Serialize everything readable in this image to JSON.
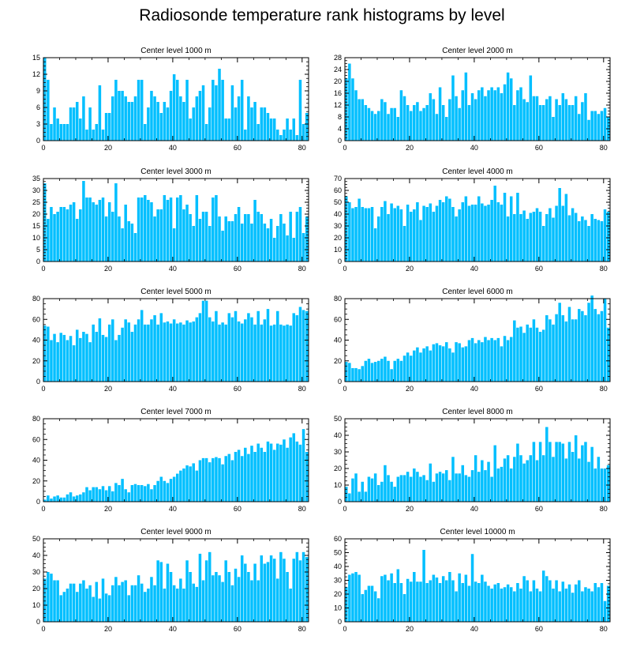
{
  "title": "Radiosonde temperature rank histograms by level",
  "colors": {
    "bar": "#00BFFF",
    "bar_edge": "#ffffff",
    "axis": "#000000"
  },
  "chart_data": [
    {
      "type": "bar",
      "title": "Center level 1000 m",
      "xlim": [
        0,
        82
      ],
      "ylim": [
        0,
        15
      ],
      "xticks": [
        0,
        20,
        40,
        60,
        80
      ],
      "yticks": [
        0,
        3,
        6,
        9,
        12,
        15
      ],
      "values": [
        15,
        11,
        3,
        6,
        4,
        3,
        3,
        3,
        6,
        6,
        7,
        4,
        8,
        2,
        6,
        2,
        3,
        10,
        2,
        5,
        5,
        8,
        11,
        9,
        9,
        8,
        7,
        7,
        8,
        11,
        11,
        3,
        6,
        9,
        8,
        7,
        5,
        7,
        6,
        9,
        12,
        11,
        8,
        7,
        11,
        4,
        6,
        8,
        9,
        10,
        3,
        6,
        11,
        10,
        13,
        11,
        4,
        4,
        10,
        6,
        8,
        11,
        2,
        8,
        6,
        7,
        3,
        6,
        6,
        5,
        4,
        4,
        2,
        1,
        2,
        4,
        2,
        4,
        1,
        11,
        3,
        5
      ]
    },
    {
      "type": "bar",
      "title": "Center level 2000 m",
      "xlim": [
        0,
        82
      ],
      "ylim": [
        0,
        28
      ],
      "xticks": [
        0,
        20,
        40,
        60,
        80
      ],
      "yticks": [
        0,
        4,
        8,
        12,
        16,
        20,
        24,
        28
      ],
      "values": [
        21,
        26,
        21,
        17,
        14,
        14,
        12,
        11,
        10,
        9,
        10,
        14,
        13,
        9,
        11,
        11,
        8,
        17,
        15,
        12,
        10,
        12,
        13,
        10,
        11,
        12,
        16,
        14,
        9,
        18,
        12,
        8,
        14,
        22,
        15,
        11,
        17,
        23,
        12,
        16,
        14,
        17,
        18,
        15,
        17,
        18,
        17,
        18,
        16,
        19,
        23,
        21,
        12,
        17,
        18,
        14,
        13,
        22,
        15,
        15,
        12,
        12,
        14,
        15,
        8,
        14,
        12,
        16,
        14,
        12,
        12,
        15,
        9,
        13,
        16,
        7,
        10,
        10,
        9,
        10,
        11,
        8
      ]
    },
    {
      "type": "bar",
      "title": "Center level 3000 m",
      "xlim": [
        0,
        82
      ],
      "ylim": [
        0,
        35
      ],
      "xticks": [
        0,
        20,
        40,
        60,
        80
      ],
      "yticks": [
        0,
        5,
        10,
        15,
        20,
        25,
        30,
        35
      ],
      "values": [
        33,
        18,
        23,
        20,
        21,
        23,
        23,
        22,
        24,
        25,
        18,
        22,
        34,
        27,
        27,
        25,
        24,
        26,
        27,
        19,
        25,
        21,
        33,
        19,
        14,
        24,
        17,
        16,
        12,
        27,
        27,
        28,
        26,
        25,
        19,
        22,
        22,
        28,
        26,
        27,
        14,
        27,
        28,
        22,
        24,
        20,
        15,
        28,
        18,
        21,
        21,
        15,
        27,
        28,
        19,
        13,
        19,
        17,
        17,
        20,
        23,
        16,
        20,
        20,
        16,
        26,
        21,
        20,
        16,
        14,
        18,
        10,
        15,
        20,
        16,
        11,
        21,
        10,
        21,
        23,
        12,
        19
      ]
    },
    {
      "type": "bar",
      "title": "Center level 4000 m",
      "xlim": [
        0,
        82
      ],
      "ylim": [
        0,
        70
      ],
      "xticks": [
        0,
        20,
        40,
        60,
        80
      ],
      "yticks": [
        0,
        10,
        20,
        30,
        40,
        50,
        60,
        70
      ],
      "values": [
        55,
        50,
        45,
        46,
        53,
        46,
        45,
        45,
        46,
        28,
        38,
        46,
        51,
        40,
        49,
        45,
        47,
        44,
        30,
        48,
        42,
        44,
        50,
        35,
        47,
        46,
        49,
        42,
        47,
        52,
        50,
        55,
        53,
        46,
        38,
        44,
        50,
        55,
        47,
        48,
        48,
        55,
        49,
        47,
        48,
        52,
        64,
        50,
        48,
        58,
        38,
        55,
        40,
        58,
        40,
        43,
        36,
        41,
        42,
        45,
        42,
        30,
        40,
        45,
        37,
        47,
        62,
        47,
        57,
        39,
        45,
        41,
        34,
        38,
        35,
        30,
        40,
        36,
        35,
        34,
        44,
        42
      ]
    },
    {
      "type": "bar",
      "title": "Center level 5000 m",
      "xlim": [
        0,
        82
      ],
      "ylim": [
        0,
        80
      ],
      "xticks": [
        0,
        20,
        40,
        60,
        80
      ],
      "yticks": [
        0,
        20,
        40,
        60,
        80
      ],
      "values": [
        54,
        53,
        40,
        46,
        38,
        47,
        45,
        40,
        44,
        35,
        50,
        42,
        48,
        46,
        38,
        55,
        48,
        61,
        45,
        43,
        55,
        60,
        40,
        45,
        52,
        60,
        57,
        48,
        55,
        60,
        69,
        55,
        55,
        60,
        64,
        55,
        66,
        57,
        58,
        56,
        60,
        56,
        57,
        55,
        59,
        57,
        58,
        62,
        66,
        78,
        78,
        62,
        58,
        68,
        55,
        57,
        55,
        66,
        62,
        68,
        58,
        56,
        60,
        66,
        62,
        55,
        68,
        55,
        60,
        70,
        54,
        55,
        68,
        55,
        54,
        55,
        54,
        66,
        64,
        72,
        69,
        68
      ]
    },
    {
      "type": "bar",
      "title": "Center level 6000 m",
      "xlim": [
        0,
        82
      ],
      "ylim": [
        0,
        80
      ],
      "xticks": [
        0,
        20,
        40,
        60,
        80
      ],
      "yticks": [
        0,
        20,
        40,
        60,
        80
      ],
      "values": [
        19,
        18,
        13,
        13,
        12,
        15,
        20,
        22,
        18,
        19,
        20,
        22,
        24,
        20,
        12,
        20,
        22,
        20,
        25,
        28,
        25,
        30,
        33,
        28,
        32,
        34,
        30,
        36,
        37,
        35,
        34,
        38,
        32,
        28,
        38,
        37,
        33,
        34,
        40,
        42,
        37,
        40,
        38,
        43,
        40,
        42,
        40,
        42,
        34,
        44,
        40,
        43,
        59,
        52,
        53,
        47,
        55,
        52,
        60,
        52,
        48,
        50,
        64,
        60,
        55,
        65,
        76,
        64,
        58,
        72,
        60,
        60,
        70,
        68,
        64,
        76,
        83,
        70,
        65,
        68,
        80,
        52
      ]
    },
    {
      "type": "bar",
      "title": "Center level 7000 m",
      "xlim": [
        0,
        82
      ],
      "ylim": [
        0,
        80
      ],
      "xticks": [
        0,
        20,
        40,
        60,
        80
      ],
      "yticks": [
        0,
        20,
        40,
        60,
        80
      ],
      "values": [
        2,
        6,
        3,
        5,
        6,
        4,
        4,
        7,
        9,
        5,
        6,
        7,
        9,
        14,
        11,
        14,
        14,
        12,
        15,
        11,
        15,
        10,
        18,
        16,
        22,
        12,
        9,
        16,
        17,
        16,
        16,
        15,
        17,
        12,
        16,
        20,
        24,
        20,
        18,
        22,
        24,
        27,
        30,
        32,
        35,
        34,
        37,
        30,
        40,
        42,
        42,
        38,
        42,
        43,
        42,
        36,
        44,
        46,
        40,
        48,
        50,
        44,
        52,
        46,
        54,
        48,
        56,
        52,
        48,
        58,
        56,
        50,
        56,
        55,
        60,
        52,
        62,
        66,
        58,
        55,
        70,
        48
      ]
    },
    {
      "type": "bar",
      "title": "Center level 8000 m",
      "xlim": [
        0,
        82
      ],
      "ylim": [
        0,
        50
      ],
      "xticks": [
        0,
        20,
        40,
        60,
        80
      ],
      "yticks": [
        0,
        10,
        20,
        30,
        40,
        50
      ],
      "values": [
        9,
        5,
        14,
        17,
        6,
        12,
        6,
        15,
        14,
        17,
        10,
        12,
        22,
        16,
        12,
        9,
        15,
        16,
        16,
        18,
        15,
        20,
        18,
        15,
        16,
        13,
        23,
        12,
        17,
        18,
        17,
        19,
        13,
        27,
        17,
        17,
        22,
        16,
        15,
        19,
        28,
        18,
        25,
        19,
        24,
        15,
        34,
        20,
        21,
        26,
        28,
        20,
        27,
        35,
        28,
        23,
        25,
        28,
        36,
        25,
        36,
        28,
        45,
        36,
        27,
        36,
        36,
        35,
        26,
        36,
        30,
        40,
        26,
        34,
        36,
        24,
        33,
        20,
        27,
        20,
        20,
        22
      ]
    },
    {
      "type": "bar",
      "title": "Center level 9000 m",
      "xlim": [
        0,
        82
      ],
      "ylim": [
        0,
        50
      ],
      "xticks": [
        0,
        20,
        40,
        60,
        80
      ],
      "yticks": [
        0,
        10,
        20,
        30,
        40,
        50
      ],
      "values": [
        26,
        30,
        29,
        25,
        25,
        16,
        18,
        20,
        23,
        23,
        18,
        23,
        25,
        20,
        22,
        15,
        24,
        14,
        26,
        17,
        16,
        22,
        27,
        22,
        24,
        25,
        16,
        22,
        22,
        28,
        23,
        18,
        20,
        27,
        22,
        37,
        36,
        20,
        35,
        30,
        22,
        20,
        26,
        20,
        37,
        30,
        23,
        21,
        41,
        25,
        37,
        42,
        28,
        30,
        28,
        24,
        37,
        30,
        22,
        32,
        27,
        40,
        35,
        30,
        25,
        35,
        25,
        40,
        35,
        36,
        40,
        38,
        26,
        42,
        38,
        30,
        20,
        38,
        42,
        37,
        42,
        39
      ]
    },
    {
      "type": "bar",
      "title": "Center level 10000 m",
      "xlim": [
        0,
        82
      ],
      "ylim": [
        0,
        60
      ],
      "xticks": [
        0,
        20,
        40,
        60,
        80
      ],
      "yticks": [
        0,
        10,
        20,
        30,
        40,
        50,
        60
      ],
      "values": [
        25,
        34,
        35,
        36,
        34,
        20,
        23,
        26,
        26,
        22,
        17,
        33,
        34,
        30,
        35,
        28,
        38,
        28,
        20,
        31,
        29,
        36,
        29,
        29,
        52,
        28,
        30,
        34,
        32,
        28,
        33,
        30,
        36,
        30,
        22,
        35,
        28,
        34,
        26,
        49,
        29,
        28,
        34,
        29,
        26,
        24,
        27,
        28,
        24,
        25,
        27,
        25,
        22,
        28,
        24,
        33,
        30,
        22,
        30,
        24,
        22,
        37,
        33,
        30,
        24,
        30,
        22,
        29,
        24,
        27,
        21,
        27,
        30,
        22,
        25,
        24,
        22,
        28,
        25,
        28,
        15,
        26
      ]
    }
  ]
}
